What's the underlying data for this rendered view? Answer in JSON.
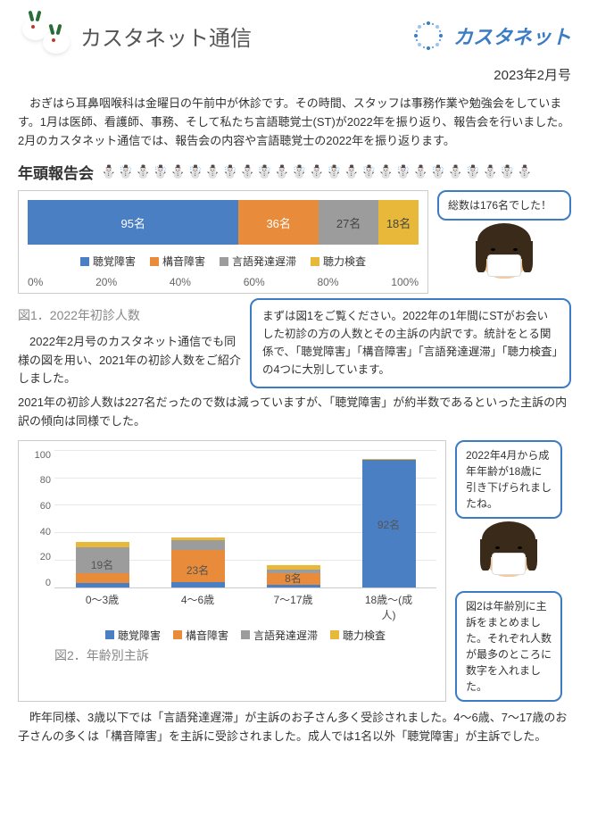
{
  "header": {
    "title": "カスタネット通信",
    "brand": "カスタネット",
    "issue": "2023年2月号"
  },
  "intro": "おぎはら耳鼻咽喉科は金曜日の午前中が休診です。その時間、スタッフは事務作業や勉強会をしています。1月は医師、看護師、事務、そして私たち言語聴覚士(ST)が2022年を振り返り、報告会を行いました。2月のカスタネット通信では、報告会の内容や言語聴覚士の2022年を振り返ります。",
  "section_title": "年頭報告会",
  "snowmen": "⛄☃️⛄☃️⛄☃️⛄☃️⛄☃️⛄☃️⛄☃️⛄☃️⛄☃️⛄☃️⛄☃️⛄☃️⛄",
  "chart1": {
    "type": "stacked-horizontal-bar",
    "caption": "図1．2022年初診人数",
    "segments": [
      {
        "label": "95名",
        "value": 95,
        "color": "#4a7fc4"
      },
      {
        "label": "36名",
        "value": 36,
        "color": "#e88b3a"
      },
      {
        "label": "27名",
        "value": 27,
        "color": "#9c9c9c"
      },
      {
        "label": "18名",
        "value": 18,
        "color": "#e8b83a"
      }
    ],
    "total": 176,
    "legend": [
      {
        "label": "聴覚障害",
        "color": "#4a7fc4"
      },
      {
        "label": "構音障害",
        "color": "#e88b3a"
      },
      {
        "label": "言語発達遅滞",
        "color": "#9c9c9c"
      },
      {
        "label": "聴力検査",
        "color": "#e8b83a"
      }
    ],
    "axis": [
      "0%",
      "20%",
      "40%",
      "60%",
      "80%",
      "100%"
    ]
  },
  "speech1": "総数は176名でした！",
  "speech2": "まずは図1をご覧ください。2022年の1年間にSTがお会いした初診の方の人数とその主訴の内訳です。統計をとる関係で、「聴覚障害」「構音障害」「言語発達遅滞」「聴力検査」の4つに大別しています。",
  "commentary_left": "　2022年2月号のカスタネット通信でも同様の図を用い、2021年の初診人数をご紹介しました。",
  "para_after_commentary": "2021年の初診人数は227名だったので数は減っていますが、「聴覚障害」が約半数であるといった主訴の内訳の傾向は同様でした。",
  "chart2": {
    "type": "stacked-bar",
    "caption": "図2．年齢別主訴",
    "ymax": 100,
    "yticks": [
      100,
      80,
      60,
      40,
      20,
      0
    ],
    "categories": [
      "0～3歳",
      "4～6歳",
      "7～17歳",
      "18歳～(成人)"
    ],
    "series_colors": {
      "a": "#4a7fc4",
      "b": "#e88b3a",
      "c": "#9c9c9c",
      "d": "#e8b83a"
    },
    "bars": [
      {
        "stacks": [
          {
            "k": "a",
            "v": 3
          },
          {
            "k": "b",
            "v": 7
          },
          {
            "k": "c",
            "v": 19
          },
          {
            "k": "d",
            "v": 4
          }
        ],
        "label": "19名",
        "label_y": 16
      },
      {
        "stacks": [
          {
            "k": "a",
            "v": 4
          },
          {
            "k": "b",
            "v": 23
          },
          {
            "k": "c",
            "v": 7
          },
          {
            "k": "d",
            "v": 2
          }
        ],
        "label": "23名",
        "label_y": 12
      },
      {
        "stacks": [
          {
            "k": "a",
            "v": 2
          },
          {
            "k": "b",
            "v": 8
          },
          {
            "k": "c",
            "v": 3
          },
          {
            "k": "d",
            "v": 3
          }
        ],
        "label": "8名",
        "label_y": 6
      },
      {
        "stacks": [
          {
            "k": "a",
            "v": 92
          },
          {
            "k": "b",
            "v": 0
          },
          {
            "k": "c",
            "v": 0
          },
          {
            "k": "d",
            "v": 1
          }
        ],
        "label": "92名",
        "label_y": 45
      }
    ],
    "legend": [
      {
        "label": "聴覚障害",
        "color": "#4a7fc4"
      },
      {
        "label": "構音障害",
        "color": "#e88b3a"
      },
      {
        "label": "言語発達遅滞",
        "color": "#9c9c9c"
      },
      {
        "label": "聴力検査",
        "color": "#e8b83a"
      }
    ]
  },
  "speech3": "2022年4月から成年年齢が18歳に引き下げられましたね。",
  "speech4": "図2は年齢別に主訴をまとめました。それぞれ人数が最多のところに数字を入れました。",
  "closing": "昨年同様、3歳以下では「言語発達遅滞」が主訴のお子さん多く受診されました。4～6歳、7～17歳のお子さんの多くは「構音障害」を主訴に受診されました。成人では1名以外「聴覚障害」が主訴でした。",
  "colors": {
    "brand_blue": "#3b7cc4",
    "text": "#333333"
  }
}
